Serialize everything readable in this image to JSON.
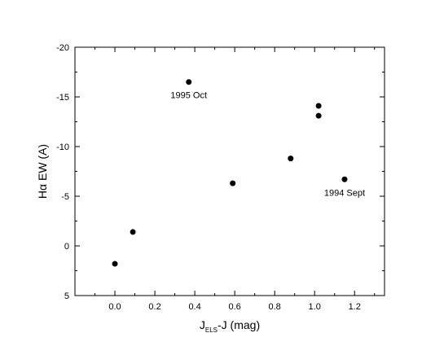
{
  "chart_data": {
    "type": "scatter",
    "title": "",
    "xlabel": {
      "main": "J",
      "sub": "ELS",
      "rest": "-J (mag)"
    },
    "ylabel": "Hα EW (A)",
    "xlim": [
      -0.2,
      1.35
    ],
    "ylim": [
      5,
      -20
    ],
    "y_inverted": true,
    "x_ticks": [
      0.0,
      0.2,
      0.4,
      0.6,
      0.8,
      1.0,
      1.2
    ],
    "x_tick_labels": [
      "0.0",
      "0.2",
      "0.4",
      "0.6",
      "0.8",
      "1.0",
      "1.2"
    ],
    "y_ticks": [
      -20,
      -15,
      -10,
      -5,
      0,
      5
    ],
    "y_tick_labels": [
      "-20",
      "-15",
      "-10",
      "-5",
      "0",
      "5"
    ],
    "grid": false,
    "points": [
      {
        "x": 0.0,
        "y": 1.8
      },
      {
        "x": 0.09,
        "y": -1.4
      },
      {
        "x": 0.37,
        "y": -16.5
      },
      {
        "x": 0.59,
        "y": -6.3
      },
      {
        "x": 0.88,
        "y": -8.8
      },
      {
        "x": 1.02,
        "y": -14.1
      },
      {
        "x": 1.02,
        "y": -13.1
      },
      {
        "x": 1.15,
        "y": -6.7
      }
    ],
    "annotations": [
      {
        "text": "1995 Oct",
        "x": 0.37,
        "y": -16.5
      },
      {
        "text": "1994 Sept",
        "x": 1.15,
        "y": -6.7
      }
    ],
    "marker_color": "#000000"
  }
}
